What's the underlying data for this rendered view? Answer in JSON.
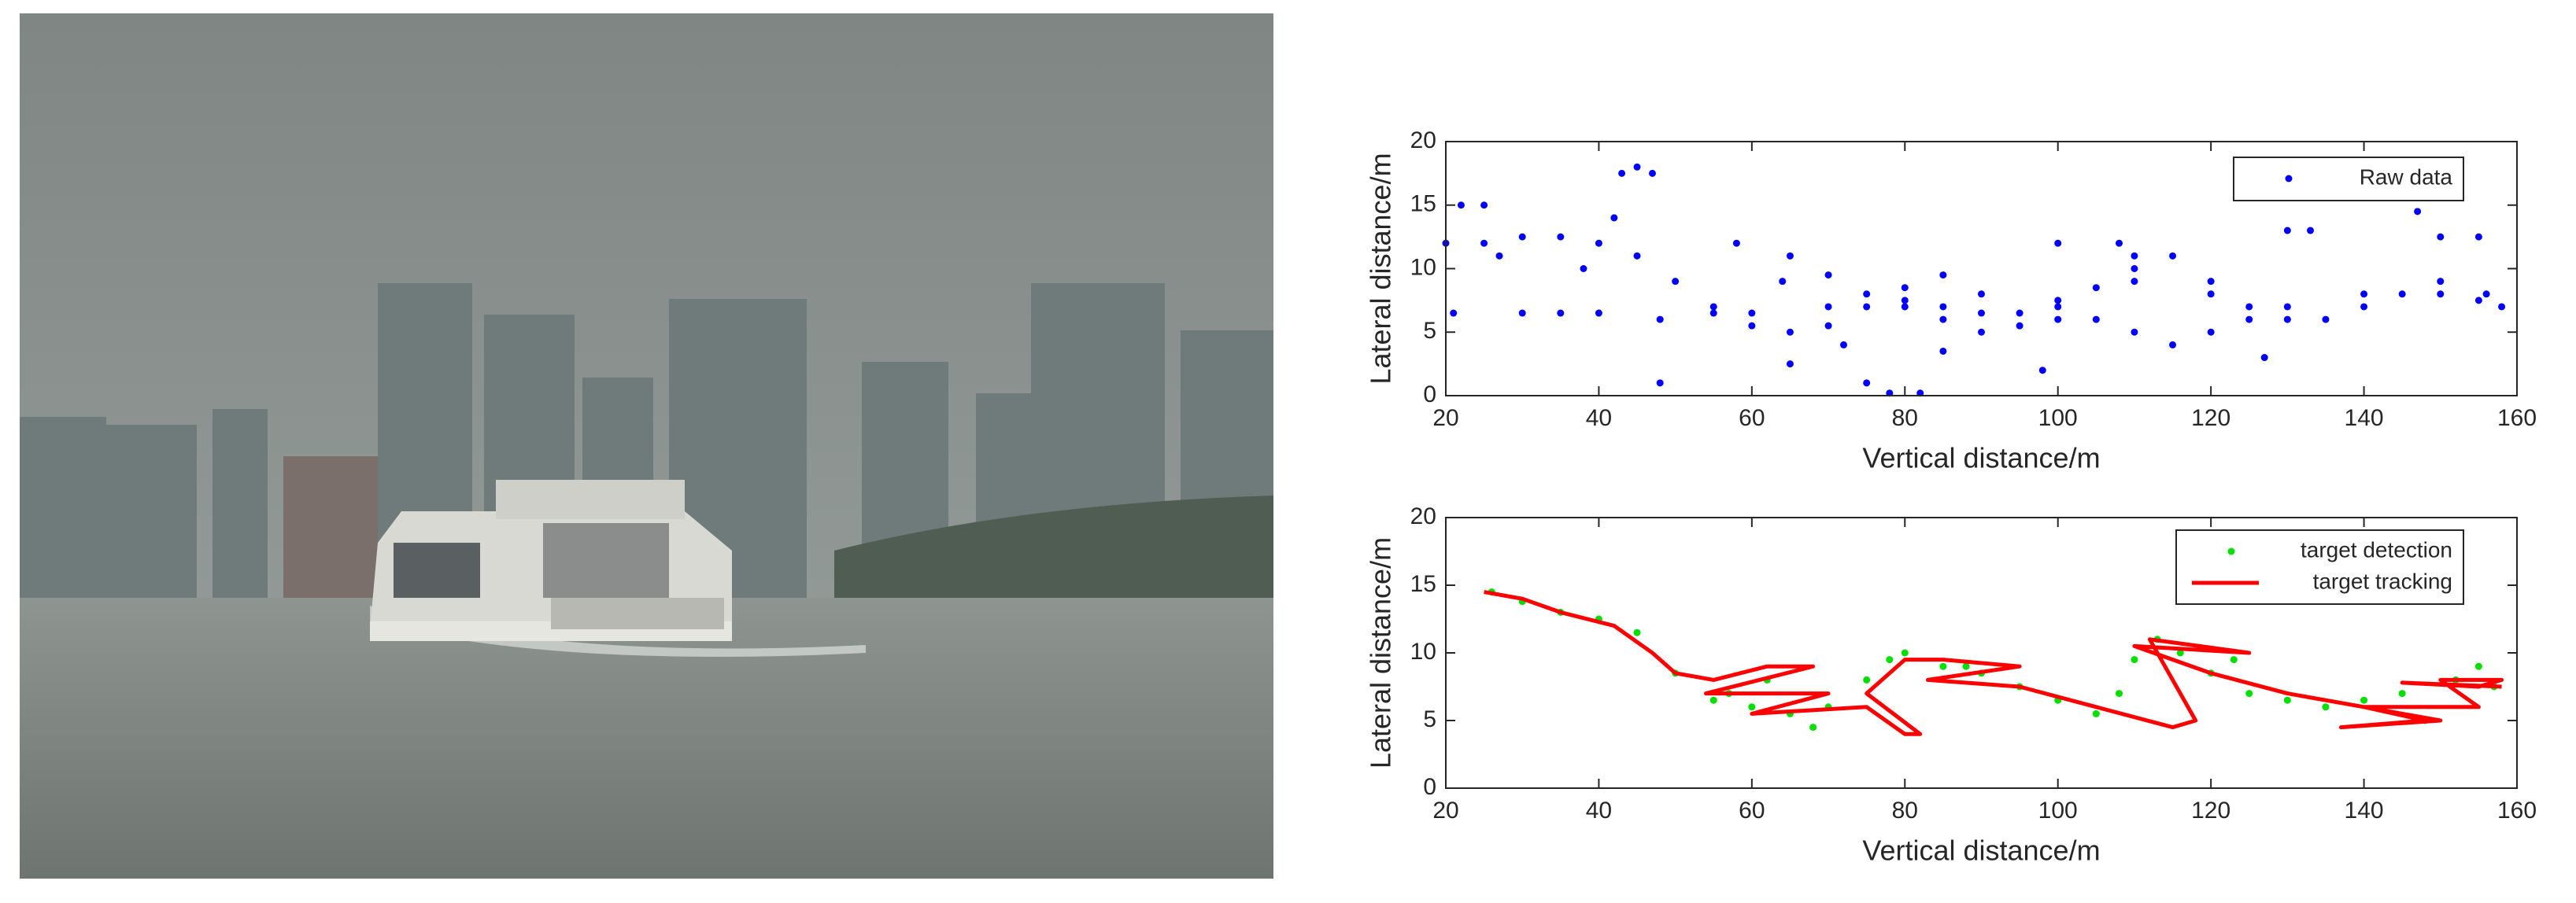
{
  "chart_data": [
    {
      "type": "scatter",
      "xlabel": "Vertical distance/m",
      "ylabel": "Lateral distance/m",
      "xlim": [
        20,
        160
      ],
      "xticks": [
        20,
        40,
        60,
        80,
        100,
        120,
        140,
        160
      ],
      "ylim": [
        0,
        20
      ],
      "yticks": [
        0,
        5,
        10,
        15,
        20
      ],
      "legend": "upper right",
      "series": [
        {
          "name": "Raw data",
          "color": "#0000ff",
          "mode": "markers",
          "x": [
            20,
            25,
            30,
            35,
            40,
            45,
            50,
            55,
            60,
            65,
            70,
            75,
            80,
            85,
            90,
            95,
            100,
            105,
            110,
            115,
            120,
            125,
            130,
            135,
            140,
            145,
            150,
            155,
            158,
            58,
            65,
            70,
            75,
            80,
            85,
            90,
            95,
            100,
            105,
            110,
            115,
            120,
            125,
            48,
            55,
            60,
            70,
            80,
            85,
            90,
            100,
            110,
            120,
            130,
            140,
            150,
            156,
            22,
            25,
            27,
            30,
            35,
            40,
            43,
            45,
            47,
            48,
            42,
            38,
            65,
            75,
            78,
            82,
            98,
            100,
            108,
            110,
            130,
            133,
            147,
            150,
            155,
            127,
            21,
            64,
            72,
            85
          ],
          "values": [
            12,
            12,
            12.5,
            12.5,
            12,
            11,
            9,
            7,
            5.5,
            5,
            5.5,
            7,
            7.5,
            7,
            6.5,
            6.5,
            7,
            8.5,
            10,
            11,
            9,
            7,
            6,
            6,
            7,
            8,
            8,
            7.5,
            7,
            12,
            11,
            9.5,
            8,
            7,
            6,
            5,
            5.5,
            6,
            6,
            5,
            4,
            5,
            6,
            6,
            6.5,
            6.5,
            7,
            8.5,
            9.5,
            8,
            7.5,
            9,
            8,
            7,
            8,
            9,
            8,
            15,
            15,
            11,
            6.5,
            6.5,
            6.5,
            17.5,
            18,
            17.5,
            1,
            14,
            10,
            2.5,
            1,
            0.2,
            0.2,
            2,
            12,
            12,
            11,
            13,
            13,
            14.5,
            12.5,
            12.5,
            3,
            6.5,
            9,
            4,
            3.5
          ]
        }
      ]
    },
    {
      "type": "scatter",
      "xlabel": "Vertical distance/m",
      "ylabel": "Lateral distance/m",
      "xlim": [
        20,
        160
      ],
      "xticks": [
        20,
        40,
        60,
        80,
        100,
        120,
        140,
        160
      ],
      "ylim": [
        0,
        20
      ],
      "yticks": [
        0,
        5,
        10,
        15,
        20
      ],
      "legend": "upper right",
      "series": [
        {
          "name": "target detection",
          "color": "#00e000",
          "mode": "markers",
          "x": [
            26,
            30,
            35,
            40,
            45,
            50,
            55,
            60,
            65,
            68,
            70,
            75,
            78,
            80,
            85,
            90,
            95,
            100,
            105,
            108,
            110,
            113,
            116,
            120,
            125,
            130,
            135,
            140,
            145,
            148,
            152,
            155,
            157,
            57,
            62,
            88,
            123
          ],
          "values": [
            14.5,
            13.8,
            13,
            12.5,
            11.5,
            8.5,
            6.5,
            6,
            5.5,
            4.5,
            6,
            8,
            9.5,
            10,
            9,
            8.5,
            7.5,
            6.5,
            5.5,
            7,
            9.5,
            11,
            10,
            8.5,
            7,
            6.5,
            6,
            6.5,
            7,
            5,
            8,
            9,
            7.5,
            7,
            8,
            9,
            9.5
          ]
        },
        {
          "name": "target tracking",
          "color": "#ff0000",
          "mode": "lines",
          "x": [
            25,
            30,
            35,
            42,
            47,
            50,
            55,
            62,
            68,
            54,
            65,
            70,
            60,
            75,
            80,
            82,
            75,
            80,
            85,
            95,
            83,
            95,
            105,
            115,
            118,
            112,
            125,
            110,
            120,
            130,
            140,
            150,
            137,
            148,
            140,
            155,
            150,
            158,
            155,
            145,
            158
          ],
          "values": [
            14.5,
            14,
            13,
            12,
            10,
            8.5,
            8,
            9,
            9,
            7,
            7,
            7,
            5.5,
            6,
            4,
            4,
            7,
            9.5,
            9.5,
            9,
            8,
            7.5,
            6,
            4.5,
            5,
            11,
            10,
            10.5,
            8.5,
            7,
            6,
            5,
            4.5,
            5,
            6,
            6,
            8,
            8,
            7.5,
            7.8,
            7.5
          ]
        }
      ]
    }
  ]
}
